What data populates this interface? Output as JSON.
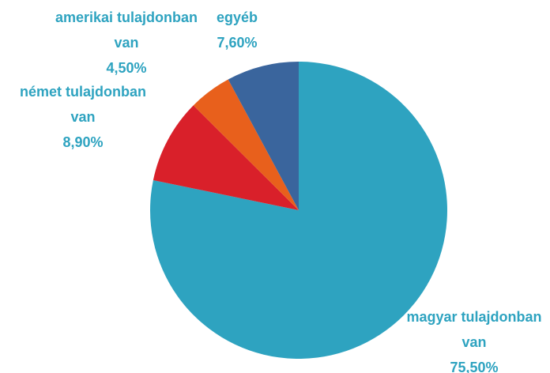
{
  "chart_data": {
    "type": "pie",
    "categories": [
      "magyar tulajdonban van",
      "német tulajdonban van",
      "amerikai tulajdonban van",
      "egyéb"
    ],
    "values": [
      75.5,
      8.9,
      4.5,
      7.6
    ],
    "value_labels": [
      "75,50%",
      "8,90%",
      "4,50%",
      "7,60%"
    ],
    "colors": [
      "#2ea3c0",
      "#d9202a",
      "#e8601c",
      "#3a659d"
    ]
  }
}
